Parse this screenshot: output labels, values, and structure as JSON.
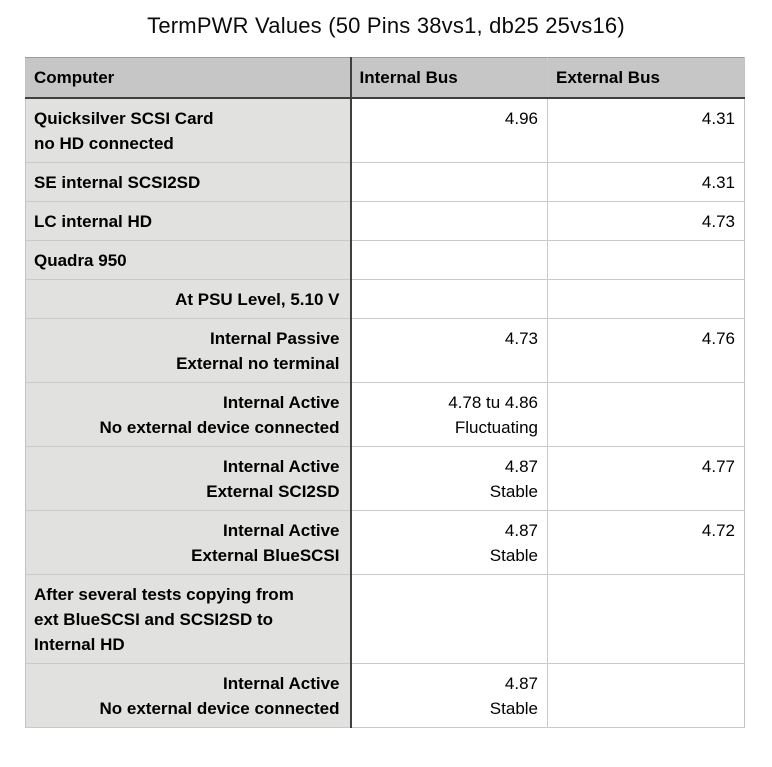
{
  "title": "TermPWR Values (50 Pins 38vs1, db25 25vs16)",
  "table": {
    "headers": {
      "computer": "Computer",
      "internal": "Internal Bus",
      "external": "External Bus"
    },
    "rows": [
      {
        "computer": "Quicksilver SCSI Card\nno HD connected",
        "internal": "4.96",
        "external": "4.31"
      },
      {
        "computer": "SE internal SCSI2SD",
        "internal": "",
        "external": "4.31"
      },
      {
        "computer": "LC internal HD",
        "internal": "",
        "external": "4.73"
      },
      {
        "computer": "Quadra 950",
        "internal": "",
        "external": ""
      },
      {
        "computer": "At PSU Level, 5.10 V",
        "internal": "",
        "external": ""
      },
      {
        "computer": "Internal Passive\nExternal no terminal",
        "internal": "4.73",
        "external": "4.76"
      },
      {
        "computer": "Internal Active\nNo external device connected",
        "internal": "4.78 tu 4.86\nFluctuating",
        "external": ""
      },
      {
        "computer": "Internal Active\nExternal SCI2SD",
        "internal": "4.87\nStable",
        "external": "4.77"
      },
      {
        "computer": "Internal Active\nExternal BlueSCSI",
        "internal": "4.87\nStable",
        "external": "4.72"
      },
      {
        "computer": "After several tests copying from\next BlueSCSI and SCSI2SD to\nInternal HD",
        "internal": "",
        "external": ""
      },
      {
        "computer": "Internal Active\nNo external device connected",
        "internal": "4.87\nStable",
        "external": ""
      }
    ],
    "colors": {
      "header_bg": "#c5c6c5",
      "first_column_bg": "#e1e1e0",
      "dark_border": "#3f3f3f",
      "light_border": "#c9c9c9",
      "text": "#000000"
    }
  }
}
